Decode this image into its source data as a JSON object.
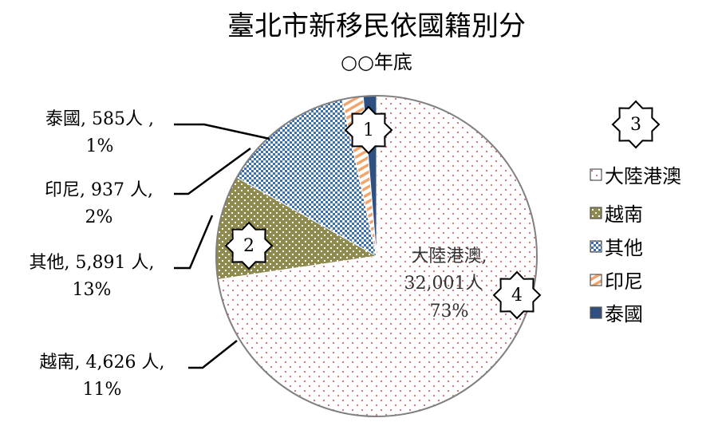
{
  "chart_data": {
    "type": "pie",
    "title": "臺北市新移民依國籍別分",
    "subtitle": "○○年底",
    "unit": "人",
    "slices": [
      {
        "name": "大陸港澳",
        "value": 32001,
        "percent": 73,
        "value_label": "32,001人",
        "percent_label": "73%",
        "label_line1": "大陸港澳,",
        "fill": "#ffffff",
        "pattern": "dots-red"
      },
      {
        "name": "越南",
        "value": 4626,
        "percent": 11,
        "value_label": "4,626 人",
        "percent_label": "11%",
        "label_line1": "越南, 4,626 人,",
        "fill": "#8f8b50",
        "pattern": "dots-dark"
      },
      {
        "name": "其他",
        "value": 5891,
        "percent": 13,
        "value_label": "5,891 人",
        "percent_label": "13%",
        "label_line1": "其他, 5,891 人,",
        "fill": "#3a6fb0",
        "pattern": "check-blue"
      },
      {
        "name": "印尼",
        "value": 937,
        "percent": 2,
        "value_label": "937 人",
        "percent_label": "2%",
        "label_line1": "印尼, 937 人,",
        "fill": "#ffffff",
        "pattern": "stripe-orange"
      },
      {
        "name": "泰國",
        "value": 585,
        "percent": 1,
        "value_label": "585人 ,",
        "percent_label": "1%",
        "label_line1": "泰國, 585人 ,",
        "fill": "#2e4f7f",
        "pattern": "solid-navy"
      }
    ],
    "legend": {
      "position": "right",
      "items": [
        "大陸港澳",
        "越南",
        "其他",
        "印尼",
        "泰國"
      ]
    },
    "markers": [
      "1",
      "2",
      "3",
      "4"
    ],
    "colors": {
      "outline": "#808080",
      "dot_red": "#d47c7c",
      "dot_dark": "#ffffff",
      "blue": "#3a6fb0",
      "orange": "#f2a46b",
      "navy": "#2e4f7f"
    }
  }
}
